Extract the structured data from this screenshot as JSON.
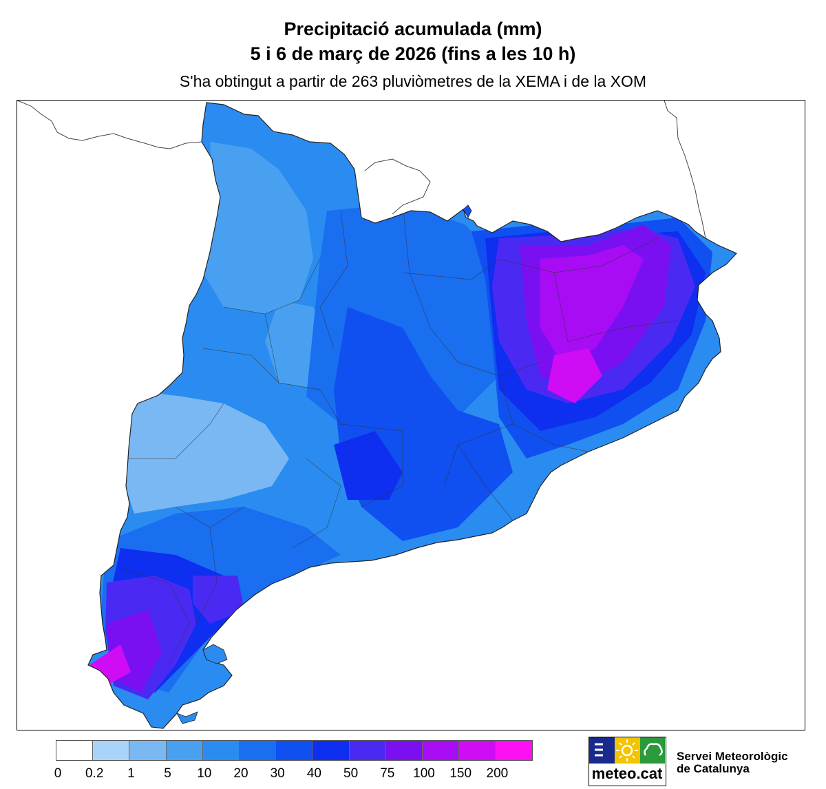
{
  "title_line1": "Precipitació acumulada (mm)",
  "title_line2": "5 i 6 de març de 2026 (fins a les 10 h)",
  "subtitle": "S'ha obtingut a partir de 263 pluviòmetres de la XEMA i de la XOM",
  "legend": {
    "bins": [
      {
        "label": "0",
        "color": "#ffffff"
      },
      {
        "label": "0.2",
        "color": "#a8d4fa"
      },
      {
        "label": "1",
        "color": "#7ab8f4"
      },
      {
        "label": "5",
        "color": "#4aa0f0"
      },
      {
        "label": "10",
        "color": "#2a8cf0"
      },
      {
        "label": "20",
        "color": "#1a6ef0"
      },
      {
        "label": "30",
        "color": "#1050f0"
      },
      {
        "label": "40",
        "color": "#0e2ef0"
      },
      {
        "label": "50",
        "color": "#4a2af2"
      },
      {
        "label": "75",
        "color": "#7a10f2"
      },
      {
        "label": "100",
        "color": "#a80cf4"
      },
      {
        "label": "150",
        "color": "#d00cf4"
      },
      {
        "label": "200",
        "color": "#ff10f4"
      }
    ]
  },
  "logo": {
    "text": "meteo.cat"
  },
  "organization": {
    "line1": "Servei Meteorològic",
    "line2": "de Catalunya"
  },
  "colors": {
    "border": "#000000",
    "outside": "#ffffff"
  },
  "icons": [
    "sea-lines-icon",
    "sun-icon",
    "cloud-rain-icon"
  ]
}
